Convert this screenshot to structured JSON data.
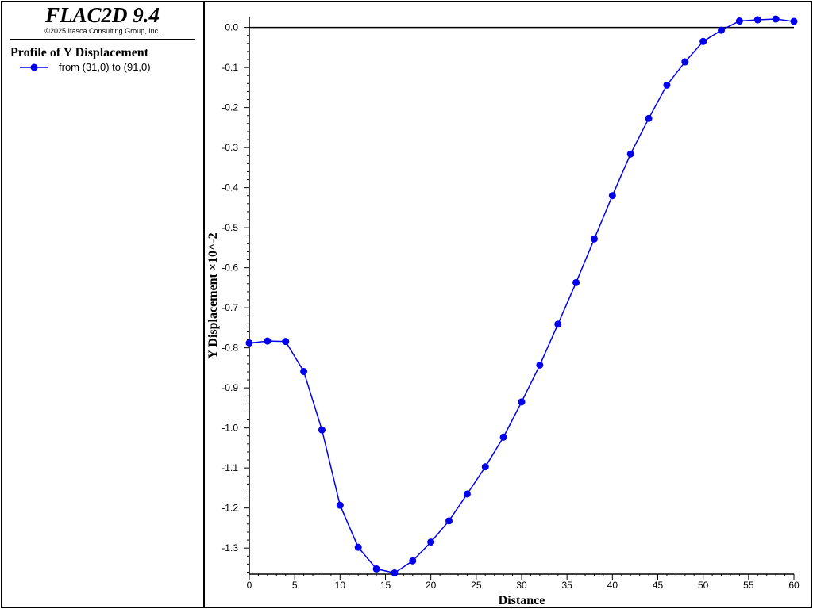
{
  "header": {
    "app_title": "FLAC2D 9.4",
    "copyright": "©2025 Itasca Consulting Group, Inc."
  },
  "legend": {
    "title": "Profile of Y Displacement",
    "entry_label": "from (31,0) to (91,0)",
    "marker_icon": "line-with-circle-marker-icon"
  },
  "colors": {
    "series": "#0000ee",
    "axis": "#000000",
    "background": "#ffffff"
  },
  "chart_data": {
    "type": "line",
    "title": "",
    "xlabel": "Distance",
    "ylabel": "Y Displacement ×10^-2",
    "xlim": [
      0,
      60
    ],
    "ylim": [
      -1.365,
      0.025
    ],
    "x_ticks": [
      "0",
      "5",
      "10",
      "15",
      "20",
      "25",
      "30",
      "35",
      "40",
      "45",
      "50",
      "55",
      "60"
    ],
    "y_ticks": [
      "0.0",
      "-0.1",
      "-0.2",
      "-0.3",
      "-0.4",
      "-0.5",
      "-0.6",
      "-0.7",
      "-0.8",
      "-0.9",
      "-1.0",
      "-1.1",
      "-1.2",
      "-1.3"
    ],
    "legend_position": "left-panel",
    "grid": false,
    "series": [
      {
        "name": "from (31,0) to (91,0)",
        "x": [
          0,
          2,
          4,
          6,
          8,
          10,
          12,
          14,
          16,
          18,
          20,
          22,
          24,
          26,
          28,
          30,
          32,
          34,
          36,
          38,
          40,
          42,
          44,
          46,
          48,
          50,
          52,
          54,
          56,
          58,
          60
        ],
        "y": [
          -0.788,
          -0.783,
          -0.784,
          -0.859,
          -1.005,
          -1.193,
          -1.298,
          -1.352,
          -1.362,
          -1.332,
          -1.285,
          -1.232,
          -1.165,
          -1.097,
          -1.023,
          -0.935,
          -0.843,
          -0.741,
          -0.637,
          -0.528,
          -0.42,
          -0.316,
          -0.227,
          -0.144,
          -0.086,
          -0.035,
          -0.007,
          0.016,
          0.019,
          0.021,
          0.015
        ]
      }
    ]
  }
}
